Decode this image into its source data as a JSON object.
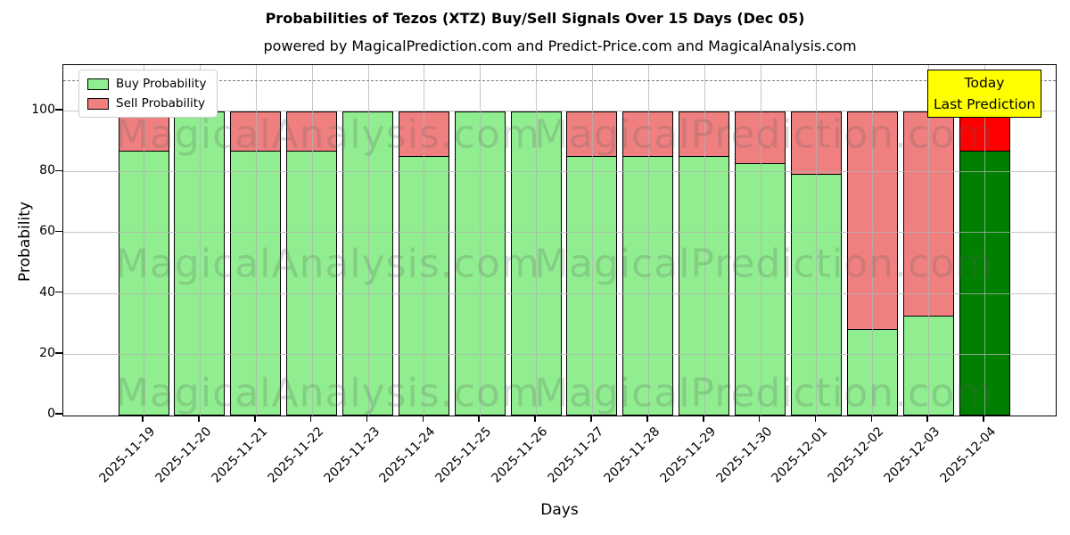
{
  "chart_data": {
    "type": "bar",
    "stacked": true,
    "title": "Probabilities of Tezos (XTZ) Buy/Sell Signals Over 15 Days (Dec 05)",
    "subtitle": "powered by MagicalPrediction.com and Predict-Price.com and MagicalAnalysis.com",
    "xlabel": "Days",
    "ylabel": "Probability",
    "ylim": [
      0,
      115
    ],
    "yticks": [
      0,
      20,
      40,
      60,
      80,
      100
    ],
    "dashed_line_y": 110,
    "grid": true,
    "legend_position": "upper-left",
    "categories": [
      "2025-11-19",
      "2025-11-20",
      "2025-11-21",
      "2025-11-22",
      "2025-11-23",
      "2025-11-24",
      "2025-11-25",
      "2025-11-26",
      "2025-11-27",
      "2025-11-28",
      "2025-11-29",
      "2025-11-30",
      "2025-12-01",
      "2025-12-02",
      "2025-12-03",
      "2025-12-04"
    ],
    "series": [
      {
        "name": "Buy Probability",
        "color": "#90EE90",
        "today_color": "#008000",
        "values": [
          87,
          100,
          87,
          87,
          100,
          85.5,
          100,
          100,
          85.5,
          85.5,
          85.5,
          83,
          79.5,
          28.5,
          33,
          87
        ]
      },
      {
        "name": "Sell Probability",
        "color": "#F08080",
        "today_color": "#FF0000",
        "values": [
          13,
          0,
          13,
          13,
          0,
          14.5,
          0,
          0,
          14.5,
          14.5,
          14.5,
          17,
          20.5,
          71.5,
          67,
          13
        ]
      }
    ],
    "annotation": {
      "lines": [
        "Today",
        "Last Prediction"
      ],
      "bg": "#FFFF00"
    },
    "watermarks": {
      "left": "MagicalAnalysis.com",
      "right": "MagicalPrediction.com",
      "rows": 3
    }
  }
}
